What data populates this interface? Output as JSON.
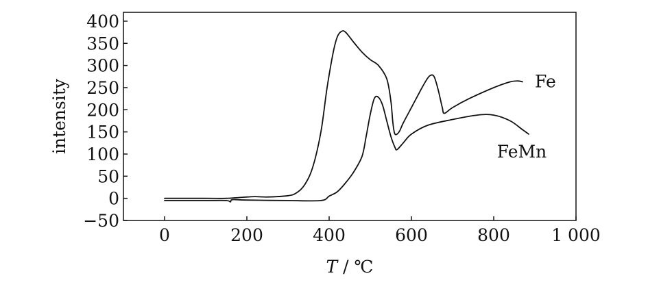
{
  "chart_data": {
    "type": "line",
    "title": "",
    "xlabel_var": "T",
    "xlabel_unit": "/ ℃",
    "ylabel": "intensity",
    "xlim": [
      -100,
      1000
    ],
    "ylim": [
      -50,
      420
    ],
    "x_ticks": [
      0,
      200,
      400,
      600,
      800,
      1000
    ],
    "x_tick_labels": [
      "0",
      "200",
      "400",
      "600",
      "800",
      "1 000"
    ],
    "y_ticks": [
      -50,
      0,
      50,
      100,
      150,
      200,
      250,
      300,
      350,
      400
    ],
    "y_tick_labels": [
      "−50",
      "0",
      "50",
      "100",
      "150",
      "200",
      "250",
      "300",
      "350",
      "400"
    ],
    "grid": false,
    "legend": "inline labels at line ends",
    "series": [
      {
        "name": "Fe",
        "points": [
          [
            0,
            0
          ],
          [
            100,
            0
          ],
          [
            150,
            0
          ],
          [
            200,
            3
          ],
          [
            220,
            4
          ],
          [
            250,
            3
          ],
          [
            300,
            6
          ],
          [
            320,
            12
          ],
          [
            340,
            30
          ],
          [
            360,
            70
          ],
          [
            380,
            150
          ],
          [
            395,
            250
          ],
          [
            410,
            330
          ],
          [
            420,
            365
          ],
          [
            430,
            377
          ],
          [
            440,
            375
          ],
          [
            460,
            352
          ],
          [
            480,
            330
          ],
          [
            500,
            313
          ],
          [
            520,
            300
          ],
          [
            540,
            270
          ],
          [
            550,
            220
          ],
          [
            555,
            170
          ],
          [
            560,
            145
          ],
          [
            570,
            150
          ],
          [
            580,
            170
          ],
          [
            600,
            205
          ],
          [
            620,
            240
          ],
          [
            635,
            265
          ],
          [
            645,
            277
          ],
          [
            655,
            275
          ],
          [
            665,
            245
          ],
          [
            675,
            205
          ],
          [
            680,
            192
          ],
          [
            700,
            205
          ],
          [
            740,
            225
          ],
          [
            800,
            250
          ],
          [
            840,
            263
          ],
          [
            860,
            265
          ],
          [
            870,
            263
          ]
        ]
      },
      {
        "name": "FeMn",
        "points": [
          [
            0,
            -5
          ],
          [
            100,
            -5
          ],
          [
            150,
            -5
          ],
          [
            160,
            -8
          ],
          [
            165,
            -3
          ],
          [
            200,
            -4
          ],
          [
            300,
            -5
          ],
          [
            380,
            -5
          ],
          [
            400,
            5
          ],
          [
            420,
            15
          ],
          [
            440,
            35
          ],
          [
            460,
            60
          ],
          [
            480,
            95
          ],
          [
            490,
            140
          ],
          [
            500,
            190
          ],
          [
            510,
            226
          ],
          [
            520,
            228
          ],
          [
            530,
            210
          ],
          [
            540,
            175
          ],
          [
            550,
            140
          ],
          [
            560,
            115
          ],
          [
            565,
            110
          ],
          [
            580,
            125
          ],
          [
            600,
            145
          ],
          [
            640,
            165
          ],
          [
            700,
            178
          ],
          [
            760,
            188
          ],
          [
            800,
            188
          ],
          [
            840,
            175
          ],
          [
            870,
            155
          ],
          [
            885,
            145
          ]
        ]
      }
    ]
  }
}
